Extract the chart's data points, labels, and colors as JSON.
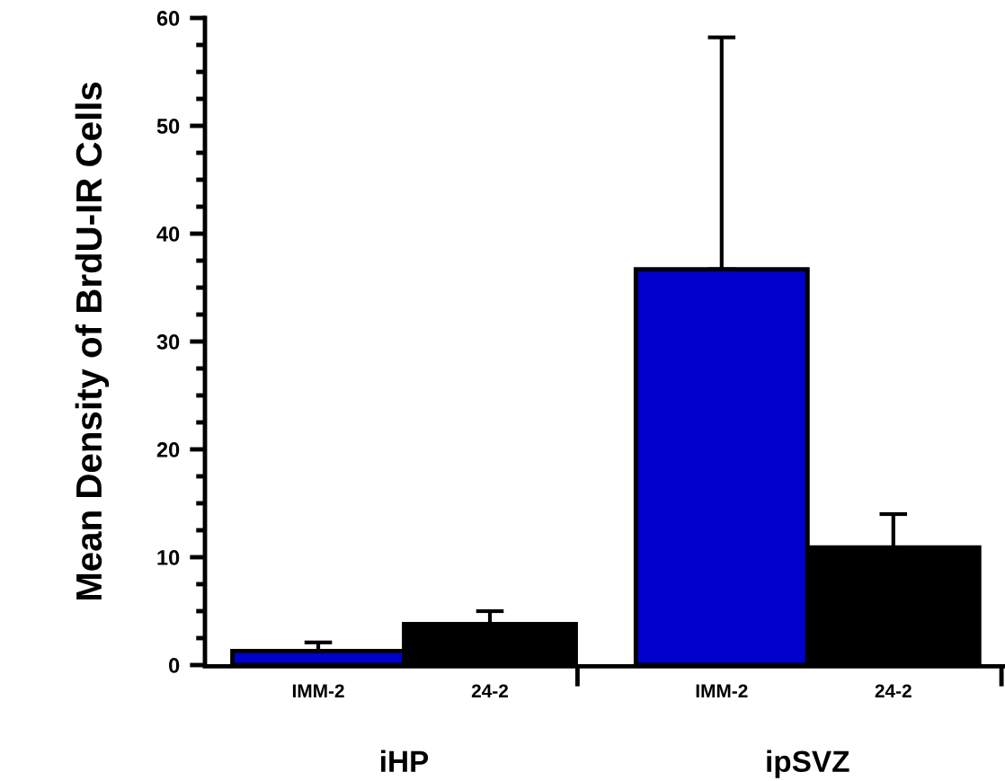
{
  "chart_data": {
    "type": "bar",
    "ylabel": "Mean Density of BrdU-IR Cells",
    "categories": [
      "IMM-2",
      "24-2",
      "IMM-2",
      "24-2"
    ],
    "values": [
      1.3,
      3.8,
      36.7,
      10.9
    ],
    "colors": [
      "#0000cc",
      "#000000",
      "#0000cc",
      "#000000"
    ],
    "errors": [
      [
        1.3,
        2.1
      ],
      [
        3.8,
        5.0
      ],
      [
        36.7,
        58.2
      ],
      [
        10.9,
        14.0
      ]
    ],
    "annotations": [
      "iHP",
      "ipSVZ"
    ],
    "ylim": [
      0,
      60
    ],
    "yticks": [
      0,
      10,
      20,
      30,
      40,
      50,
      60
    ],
    "grid": false,
    "legend": false
  }
}
